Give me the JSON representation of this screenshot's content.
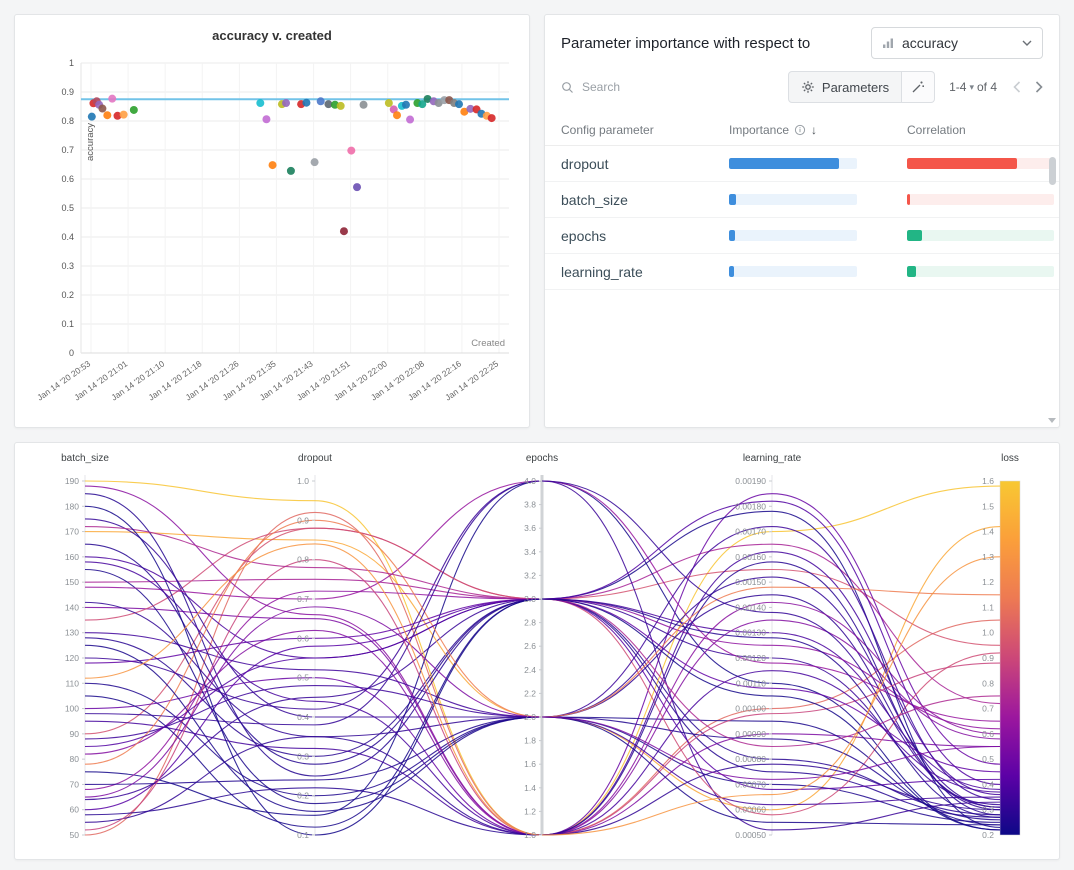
{
  "importance_panel": {
    "title": "Parameter importance with respect to",
    "metric": "accuracy",
    "search_placeholder": "Search",
    "parameters_label": "Parameters",
    "pagination_range": "1-4",
    "pagination_of": "of 4",
    "col_config": "Config parameter",
    "col_importance": "Importance",
    "col_correlation": "Correlation",
    "colors": {
      "importance_fill": "#3e8edd",
      "importance_track": "#eaf3fc",
      "negative_fill": "#f4564a",
      "negative_track": "#fdedec",
      "positive_fill": "#22b585",
      "positive_track": "#e9f7f1"
    },
    "rows": [
      {
        "name": "dropout",
        "importance": 0.86,
        "correlation": 0.75,
        "direction": "negative"
      },
      {
        "name": "batch_size",
        "importance": 0.055,
        "correlation": 0.02,
        "direction": "negative"
      },
      {
        "name": "epochs",
        "importance": 0.045,
        "correlation": 0.105,
        "direction": "positive"
      },
      {
        "name": "learning_rate",
        "importance": 0.042,
        "correlation": 0.06,
        "direction": "positive"
      }
    ]
  },
  "chart_data": [
    {
      "type": "scatter",
      "title": "accuracy v. created",
      "xlabel": "Created",
      "ylabel": "accuracy",
      "ylim": [
        0,
        1
      ],
      "yticks": [
        "1",
        "0.9",
        "0.8",
        "0.7",
        "0.6",
        "0.5",
        "0.4",
        "0.3",
        "0.2",
        "0.1",
        "0"
      ],
      "xticklabels": [
        "Jan 14 '20 20:53",
        "Jan 14 '20 21:01",
        "Jan 14 '20 21:10",
        "Jan 14 '20 21:18",
        "Jan 14 '20 21:26",
        "Jan 14 '20 21:35",
        "Jan 14 '20 21:43",
        "Jan 14 '20 21:51",
        "Jan 14 '20 22:00",
        "Jan 14 '20 22:08",
        "Jan 14 '20 22:16",
        "Jan 14 '20 22:25"
      ],
      "baseline": {
        "y": 0.875,
        "color": "#72c3e8"
      },
      "points": [
        [
          0.002,
          0.815,
          "#1f77b4"
        ],
        [
          0.006,
          0.861,
          "#d62728"
        ],
        [
          0.014,
          0.868,
          "#b5485d"
        ],
        [
          0.02,
          0.856,
          "#9467bd"
        ],
        [
          0.028,
          0.843,
          "#8c564b"
        ],
        [
          0.04,
          0.82,
          "#ff7f0e"
        ],
        [
          0.052,
          0.877,
          "#e377c2"
        ],
        [
          0.065,
          0.818,
          "#d62728"
        ],
        [
          0.08,
          0.822,
          "#ff9f43"
        ],
        [
          0.105,
          0.838,
          "#2ca02c"
        ],
        [
          0.415,
          0.862,
          "#17becf"
        ],
        [
          0.43,
          0.806,
          "#c26bd4"
        ],
        [
          0.445,
          0.648,
          "#ff7f0e"
        ],
        [
          0.468,
          0.858,
          "#bcbd22"
        ],
        [
          0.478,
          0.862,
          "#9467bd"
        ],
        [
          0.49,
          0.628,
          "#1b7f5c"
        ],
        [
          0.515,
          0.858,
          "#d62728"
        ],
        [
          0.528,
          0.863,
          "#1f77b4"
        ],
        [
          0.548,
          0.658,
          "#9aa0a6"
        ],
        [
          0.563,
          0.868,
          "#4c78c9"
        ],
        [
          0.582,
          0.858,
          "#5c6670"
        ],
        [
          0.598,
          0.856,
          "#2ca02c"
        ],
        [
          0.612,
          0.852,
          "#bcbd22"
        ],
        [
          0.62,
          0.42,
          "#8e2436"
        ],
        [
          0.638,
          0.698,
          "#f06eaa"
        ],
        [
          0.652,
          0.572,
          "#6a4fb3"
        ],
        [
          0.668,
          0.856,
          "#8a8f94"
        ],
        [
          0.73,
          0.862,
          "#bcbd22"
        ],
        [
          0.742,
          0.84,
          "#d45fb0"
        ],
        [
          0.75,
          0.82,
          "#ff7f0e"
        ],
        [
          0.762,
          0.852,
          "#17becf"
        ],
        [
          0.772,
          0.856,
          "#1f77b4"
        ],
        [
          0.782,
          0.805,
          "#c26bd4"
        ],
        [
          0.8,
          0.862,
          "#2ca02c"
        ],
        [
          0.812,
          0.858,
          "#14a58c"
        ],
        [
          0.825,
          0.876,
          "#1b7f5c"
        ],
        [
          0.84,
          0.868,
          "#9467bd"
        ],
        [
          0.852,
          0.862,
          "#8a8f94"
        ],
        [
          0.866,
          0.872,
          "#9aa0a6"
        ],
        [
          0.878,
          0.872,
          "#8c564b"
        ],
        [
          0.89,
          0.862,
          "#7f7f7f"
        ],
        [
          0.902,
          0.858,
          "#1f77b4"
        ],
        [
          0.915,
          0.832,
          "#ff7f0e"
        ],
        [
          0.93,
          0.842,
          "#9467bd"
        ],
        [
          0.945,
          0.84,
          "#d62728"
        ],
        [
          0.957,
          0.825,
          "#1f77b4"
        ],
        [
          0.97,
          0.818,
          "#ff9f43"
        ],
        [
          0.982,
          0.81,
          "#d62728"
        ]
      ]
    },
    {
      "type": "parallel_coordinates",
      "axes": [
        {
          "name": "batch_size",
          "min": 50,
          "max": 190,
          "ticks": [
            "190",
            "180",
            "170",
            "160",
            "150",
            "140",
            "130",
            "120",
            "110",
            "100",
            "90",
            "80",
            "70",
            "60",
            "50"
          ]
        },
        {
          "name": "dropout",
          "min": 0.1,
          "max": 1.0,
          "ticks": [
            "1.0",
            "0.9",
            "0.8",
            "0.7",
            "0.6",
            "0.5",
            "0.4",
            "0.3",
            "0.2",
            "0.1"
          ]
        },
        {
          "name": "epochs",
          "min": 1.0,
          "max": 4.0,
          "ticks": [
            "4.0",
            "3.8",
            "3.6",
            "3.4",
            "3.2",
            "3.0",
            "2.8",
            "2.6",
            "2.4",
            "2.2",
            "2.0",
            "1.8",
            "1.6",
            "1.4",
            "1.2",
            "1.0"
          ]
        },
        {
          "name": "learning_rate",
          "min": 0.0005,
          "max": 0.0019,
          "ticks": [
            "0.00190",
            "0.00180",
            "0.00170",
            "0.00160",
            "0.00150",
            "0.00140",
            "0.00130",
            "0.00120",
            "0.00110",
            "0.00100",
            "0.00090",
            "0.00080",
            "0.00070",
            "0.00060",
            "0.00050"
          ]
        }
      ],
      "color_axis": {
        "name": "loss",
        "min": 0.2,
        "max": 1.6,
        "ticks": [
          "1.6",
          "1.5",
          "1.4",
          "1.3",
          "1.2",
          "1.1",
          "1.0",
          "0.9",
          "0.8",
          "0.7",
          "0.6",
          "0.5",
          "0.4",
          "0.3",
          "0.2"
        ],
        "colormap": [
          "#0d0887",
          "#5c01a6",
          "#9c179e",
          "#cc4778",
          "#ed7953",
          "#fb9f3a",
          "#f8c832"
        ]
      },
      "runs": [
        [
          64,
          0.45,
          3,
          0.0012,
          0.32
        ],
        [
          128,
          0.3,
          3,
          0.0008,
          0.28
        ],
        [
          190,
          0.95,
          1,
          0.0017,
          1.58
        ],
        [
          170,
          0.85,
          2,
          0.0006,
          1.42
        ],
        [
          50,
          0.92,
          1,
          0.001,
          1.05
        ],
        [
          90,
          0.88,
          3,
          0.00155,
          0.95
        ],
        [
          150,
          0.75,
          3,
          0.00165,
          0.72
        ],
        [
          110,
          0.2,
          2,
          0.0007,
          0.25
        ],
        [
          75,
          0.15,
          4,
          0.0011,
          0.22
        ],
        [
          160,
          0.55,
          3,
          0.0013,
          0.38
        ],
        [
          140,
          0.65,
          1,
          0.0009,
          0.55
        ],
        [
          55,
          0.35,
          2,
          0.00145,
          0.3
        ],
        [
          185,
          0.25,
          3,
          0.00075,
          0.27
        ],
        [
          100,
          0.5,
          1,
          0.00185,
          0.48
        ],
        [
          120,
          0.42,
          4,
          0.00052,
          0.33
        ],
        [
          68,
          0.72,
          3,
          0.00125,
          0.62
        ],
        [
          155,
          0.18,
          2,
          0.00095,
          0.24
        ],
        [
          82,
          0.62,
          1,
          0.00135,
          0.58
        ],
        [
          135,
          0.88,
          3,
          0.00058,
          0.92
        ],
        [
          175,
          0.4,
          2,
          0.00152,
          0.31
        ],
        [
          60,
          0.58,
          3,
          0.00068,
          0.42
        ],
        [
          95,
          0.32,
          1,
          0.00162,
          0.36
        ],
        [
          148,
          0.7,
          4,
          0.00118,
          0.65
        ],
        [
          70,
          0.24,
          2,
          0.00088,
          0.26
        ],
        [
          188,
          0.66,
          1,
          0.00142,
          0.6
        ],
        [
          105,
          0.12,
          3,
          0.00178,
          0.23
        ],
        [
          130,
          0.52,
          2,
          0.00062,
          0.35
        ],
        [
          52,
          0.8,
          1,
          0.00098,
          0.88
        ],
        [
          165,
          0.28,
          3,
          0.00128,
          0.27
        ],
        [
          88,
          0.48,
          2,
          0.00172,
          0.34
        ],
        [
          142,
          0.35,
          1,
          0.00078,
          0.3
        ],
        [
          78,
          0.9,
          2,
          0.00148,
          1.15
        ],
        [
          118,
          0.6,
          3,
          0.00108,
          0.45
        ],
        [
          58,
          0.22,
          1,
          0.00158,
          0.28
        ],
        [
          172,
          0.78,
          3,
          0.00085,
          0.75
        ],
        [
          98,
          0.38,
          4,
          0.00138,
          0.31
        ],
        [
          125,
          0.16,
          2,
          0.00055,
          0.24
        ],
        [
          85,
          0.55,
          3,
          0.00182,
          0.4
        ],
        [
          158,
          0.44,
          1,
          0.00115,
          0.37
        ],
        [
          65,
          0.68,
          2,
          0.00072,
          0.55
        ],
        [
          180,
          0.1,
          3,
          0.00105,
          0.22
        ],
        [
          112,
          0.84,
          1,
          0.00066,
          1.3
        ]
      ]
    }
  ]
}
